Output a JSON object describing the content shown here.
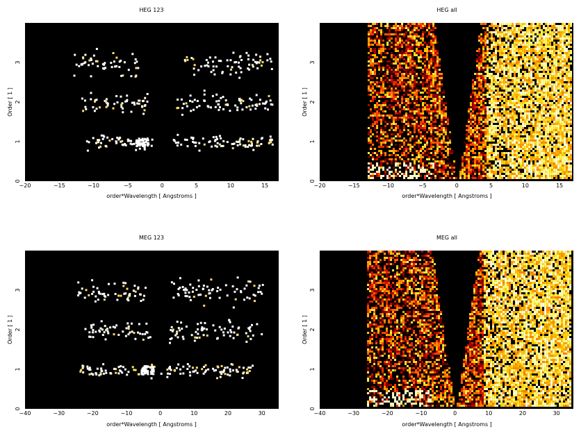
{
  "chart_data": [
    {
      "type": "heatmap",
      "title": "HEG 123",
      "xlabel": "order*Wavelength [ Angstroms ]",
      "ylabel": "Order [ 1 ]",
      "xlim": [
        -20,
        17
      ],
      "ylim": [
        0,
        4
      ],
      "xticks": [
        -20,
        -15,
        -10,
        -5,
        0,
        5,
        10,
        15
      ],
      "yticks": [
        0,
        1,
        2,
        3
      ],
      "colormap": "black-body (black→red→yellow→white)",
      "description_mode": "sparse",
      "bands": [
        {
          "order": 1,
          "x_ranges": [
            [
              -12,
              -1.5
            ],
            [
              1.5,
              16
            ]
          ],
          "bright_center": [
            -3,
            1
          ]
        },
        {
          "order": 2,
          "x_ranges": [
            [
              -12,
              -2
            ],
            [
              2,
              16
            ]
          ]
        },
        {
          "order": 3,
          "x_ranges": [
            [
              -13,
              -3.5
            ],
            [
              3,
              16
            ]
          ]
        }
      ]
    },
    {
      "type": "heatmap",
      "title": "HEG all",
      "xlabel": "order*Wavelength [ Angstroms ]",
      "ylabel": "Order [ 1 ]",
      "xlim": [
        -20,
        17
      ],
      "ylim": [
        0,
        4
      ],
      "xticks": [
        -20,
        -15,
        -10,
        -5,
        0,
        5,
        10,
        15
      ],
      "yticks": [
        0,
        1,
        2,
        3
      ],
      "colormap": "black-body (black→red→yellow→white)",
      "description_mode": "dense",
      "data_left_edge": -13,
      "data_right_edge": 17
    },
    {
      "type": "heatmap",
      "title": "MEG 123",
      "xlabel": "order*Wavelength [ Angstroms ]",
      "ylabel": "Order [ 1 ]",
      "xlim": [
        -40,
        35
      ],
      "ylim": [
        0,
        4
      ],
      "xticks": [
        -40,
        -30,
        -20,
        -10,
        0,
        10,
        20,
        30
      ],
      "yticks": [
        0,
        1,
        2,
        3
      ],
      "colormap": "black-body (black→red→yellow→white)",
      "description_mode": "sparse",
      "bands": [
        {
          "order": 1,
          "x_ranges": [
            [
              -24,
              -2
            ],
            [
              0,
              28
            ]
          ],
          "bright_center": [
            -4,
            1
          ]
        },
        {
          "order": 2,
          "x_ranges": [
            [
              -23,
              -3
            ],
            [
              2,
              30
            ]
          ]
        },
        {
          "order": 3,
          "x_ranges": [
            [
              -25,
              -4
            ],
            [
              3,
              30
            ]
          ]
        }
      ]
    },
    {
      "type": "heatmap",
      "title": "MEG all",
      "xlabel": "order*Wavelength [ Angstroms ]",
      "ylabel": "Order [ 1 ]",
      "xlim": [
        -40,
        35
      ],
      "ylim": [
        0,
        4
      ],
      "xticks": [
        -40,
        -30,
        -20,
        -10,
        0,
        10,
        20,
        30
      ],
      "yticks": [
        0,
        1,
        2,
        3
      ],
      "colormap": "black-body (black→red→yellow→white)",
      "description_mode": "dense",
      "data_left_edge": -26,
      "data_right_edge": 35
    }
  ]
}
